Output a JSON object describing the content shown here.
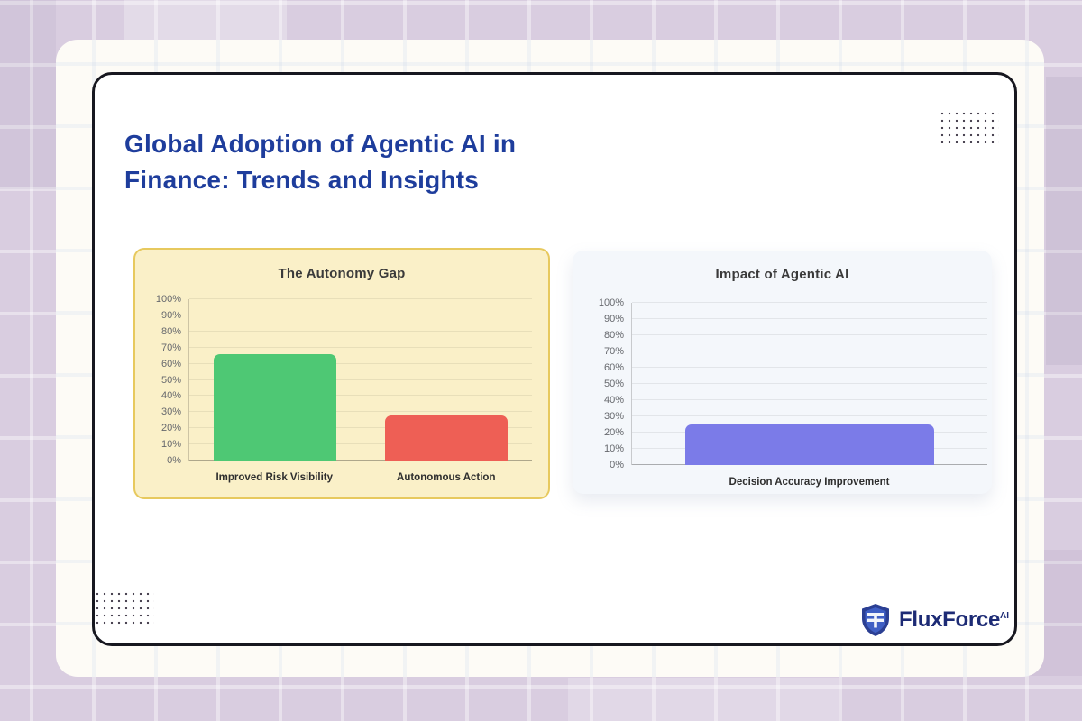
{
  "page": {
    "title_line1": "Global Adoption of Agentic AI in",
    "title_line2": "Finance: Trends and Insights",
    "title_color": "#1e3d9c"
  },
  "footer": {
    "brand": "FluxForce",
    "brand_sup": "AI",
    "brand_color": "#1d2b75",
    "shield_icon_colors": {
      "outer": "#2b3f93",
      "inner": "#3f5fc4",
      "stripes": "#f2f5fb"
    }
  },
  "colors": {
    "background": "#d9cde0",
    "outer_card": "#fdfbf6",
    "inner_card": "#ffffff",
    "inner_card_border": "#17171f",
    "dot_grid": "#4b4553"
  },
  "chart_data": [
    {
      "type": "bar",
      "title": "The Autonomy Gap",
      "categories": [
        "Improved Risk Visibility",
        "Autonomous Action"
      ],
      "values": [
        66,
        28
      ],
      "unit": "%",
      "ylim": [
        0,
        100
      ],
      "ytick_labels": [
        "0%",
        "10%",
        "20%",
        "30%",
        "40%",
        "50%",
        "60%",
        "70%",
        "80%",
        "90%",
        "100%"
      ],
      "bar_colors": [
        "#4ec874",
        "#ee5f55"
      ],
      "grid": true,
      "legend": false,
      "bar_width_frac": 0.72,
      "panel_bg": "#faf0c8",
      "panel_border": "#e7c95e"
    },
    {
      "type": "bar",
      "title": "Impact of Agentic AI",
      "categories": [
        "Decision Accuracy Improvement"
      ],
      "values": [
        25
      ],
      "unit": "%",
      "ylim": [
        0,
        100
      ],
      "ytick_labels": [
        "0%",
        "10%",
        "20%",
        "30%",
        "40%",
        "50%",
        "60%",
        "70%",
        "80%",
        "90%",
        "100%"
      ],
      "bar_colors": [
        "#7b7be8"
      ],
      "grid": true,
      "legend": false,
      "bar_width_frac": 0.7,
      "panel_bg": "#f4f7fb",
      "panel_border": null
    }
  ]
}
